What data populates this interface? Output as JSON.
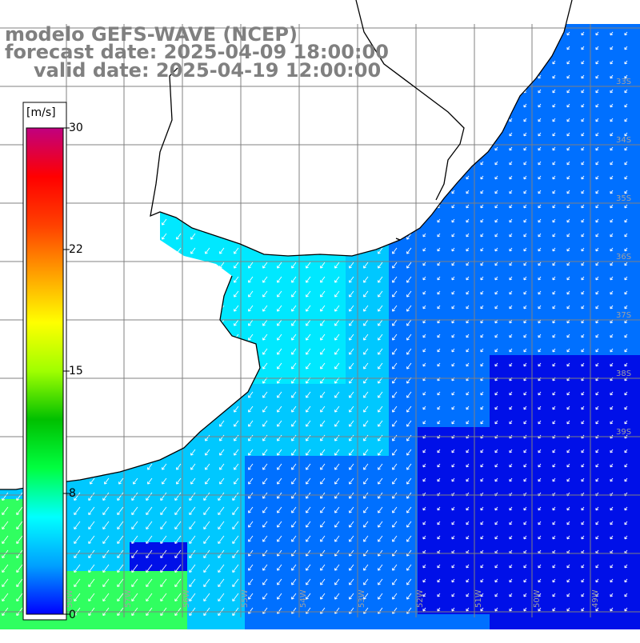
{
  "titles": {
    "model": "modelo GEFS-WAVE (NCEP)",
    "forecast": "forecast date: 2025-04-09 18:00:00",
    "valid": "valid date: 2025-04-19 12:00:00"
  },
  "colorbar": {
    "unit": "[m/s]",
    "ticks": [
      "30",
      "22",
      "15",
      "8",
      "0"
    ],
    "tick_values": [
      30,
      22,
      15,
      8,
      0
    ],
    "colors": [
      "#0000ff",
      "#00a0ff",
      "#00ffff",
      "#00ff40",
      "#00c000",
      "#a0ff00",
      "#ffff00",
      "#ffa000",
      "#ff4000",
      "#ff0000",
      "#c00080"
    ]
  },
  "map": {
    "lat_labels": [
      "33S",
      "34S",
      "35S",
      "36S",
      "37S",
      "38S",
      "39S"
    ],
    "lon_labels": [
      "58W",
      "57W",
      "56W",
      "55W",
      "54W",
      "53W",
      "52W",
      "51W",
      "50W",
      "49W"
    ],
    "colors": {
      "ocean_dark": "#0010e8",
      "ocean_mid": "#0070ff",
      "ocean_light": "#00c8ff",
      "shelf": "#00e8ff",
      "high": "#30ff60",
      "land": "#ffffff",
      "coast": "#000000",
      "grid": "#808080"
    }
  }
}
